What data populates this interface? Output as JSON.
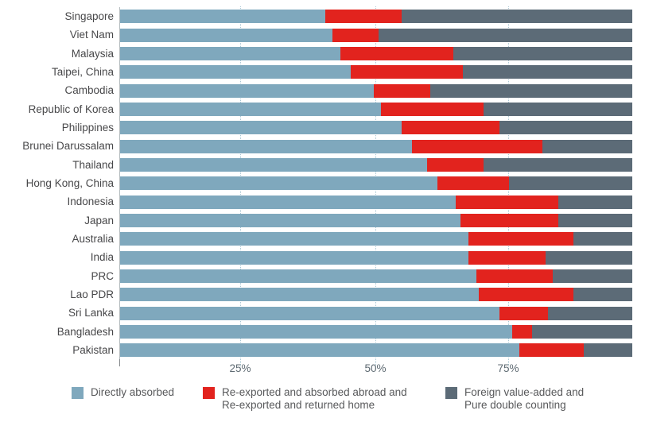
{
  "chart_data": {
    "type": "bar",
    "orientation": "horizontal",
    "stacked": true,
    "unit": "%",
    "xlim": [
      0,
      100
    ],
    "x_ticks": [
      "25%",
      "50%",
      "75%"
    ],
    "x_tick_values": [
      25,
      50,
      75
    ],
    "grid": "vertical-dotted",
    "legend_position": "bottom",
    "categories": [
      "Singapore",
      "Viet Nam",
      "Malaysia",
      "Taipei, China",
      "Cambodia",
      "Republic of Korea",
      "Philippines",
      "Brunei Darussalam",
      "Thailand",
      "Hong Kong, China",
      "Indonesia",
      "Japan",
      "Australia",
      "India",
      "PRC",
      "Lao PDR",
      "Sri Lanka",
      "Bangladesh",
      "Pakistan"
    ],
    "series": [
      {
        "name": "Directly absorbed",
        "color": "#7fa8bd",
        "values": [
          40,
          41.5,
          43,
          45,
          49.5,
          51,
          55,
          57,
          60,
          62,
          65.5,
          66.5,
          68,
          68,
          69.5,
          70,
          74,
          76.5,
          78
        ]
      },
      {
        "name": "Re-exported and absorbed abroad and Re-exported and returned home",
        "color": "#e2231e",
        "values": [
          15,
          9,
          22,
          22,
          11,
          20,
          19,
          25.5,
          11,
          14,
          20,
          19,
          20.5,
          15,
          15,
          18.5,
          9.5,
          4,
          12.5
        ]
      },
      {
        "name": "Foreign value-added and Pure double counting",
        "color": "#5c6b77",
        "values": [
          45,
          49.5,
          35,
          33,
          39.5,
          29,
          26,
          17.5,
          29,
          24,
          14.5,
          14.5,
          11.5,
          17,
          15.5,
          11.5,
          16.5,
          19.5,
          9.5
        ]
      }
    ]
  },
  "legend": {
    "items": [
      {
        "id": "directly-absorbed",
        "color": "#7fa8bd",
        "lines": [
          "Directly absorbed"
        ]
      },
      {
        "id": "re-exported",
        "color": "#e2231e",
        "lines": [
          "Re-exported and absorbed abroad and",
          "Re-exported and returned home"
        ]
      },
      {
        "id": "foreign-value-added",
        "color": "#5c6b77",
        "lines": [
          "Foreign value-added and",
          "Pure double counting"
        ]
      }
    ]
  },
  "colors": {
    "gridline": "#a9c7d4",
    "axis_line": "#b5bcbf",
    "category_text": "#48484a",
    "tick_text": "#5e6a72",
    "legend_text": "#58595b"
  }
}
